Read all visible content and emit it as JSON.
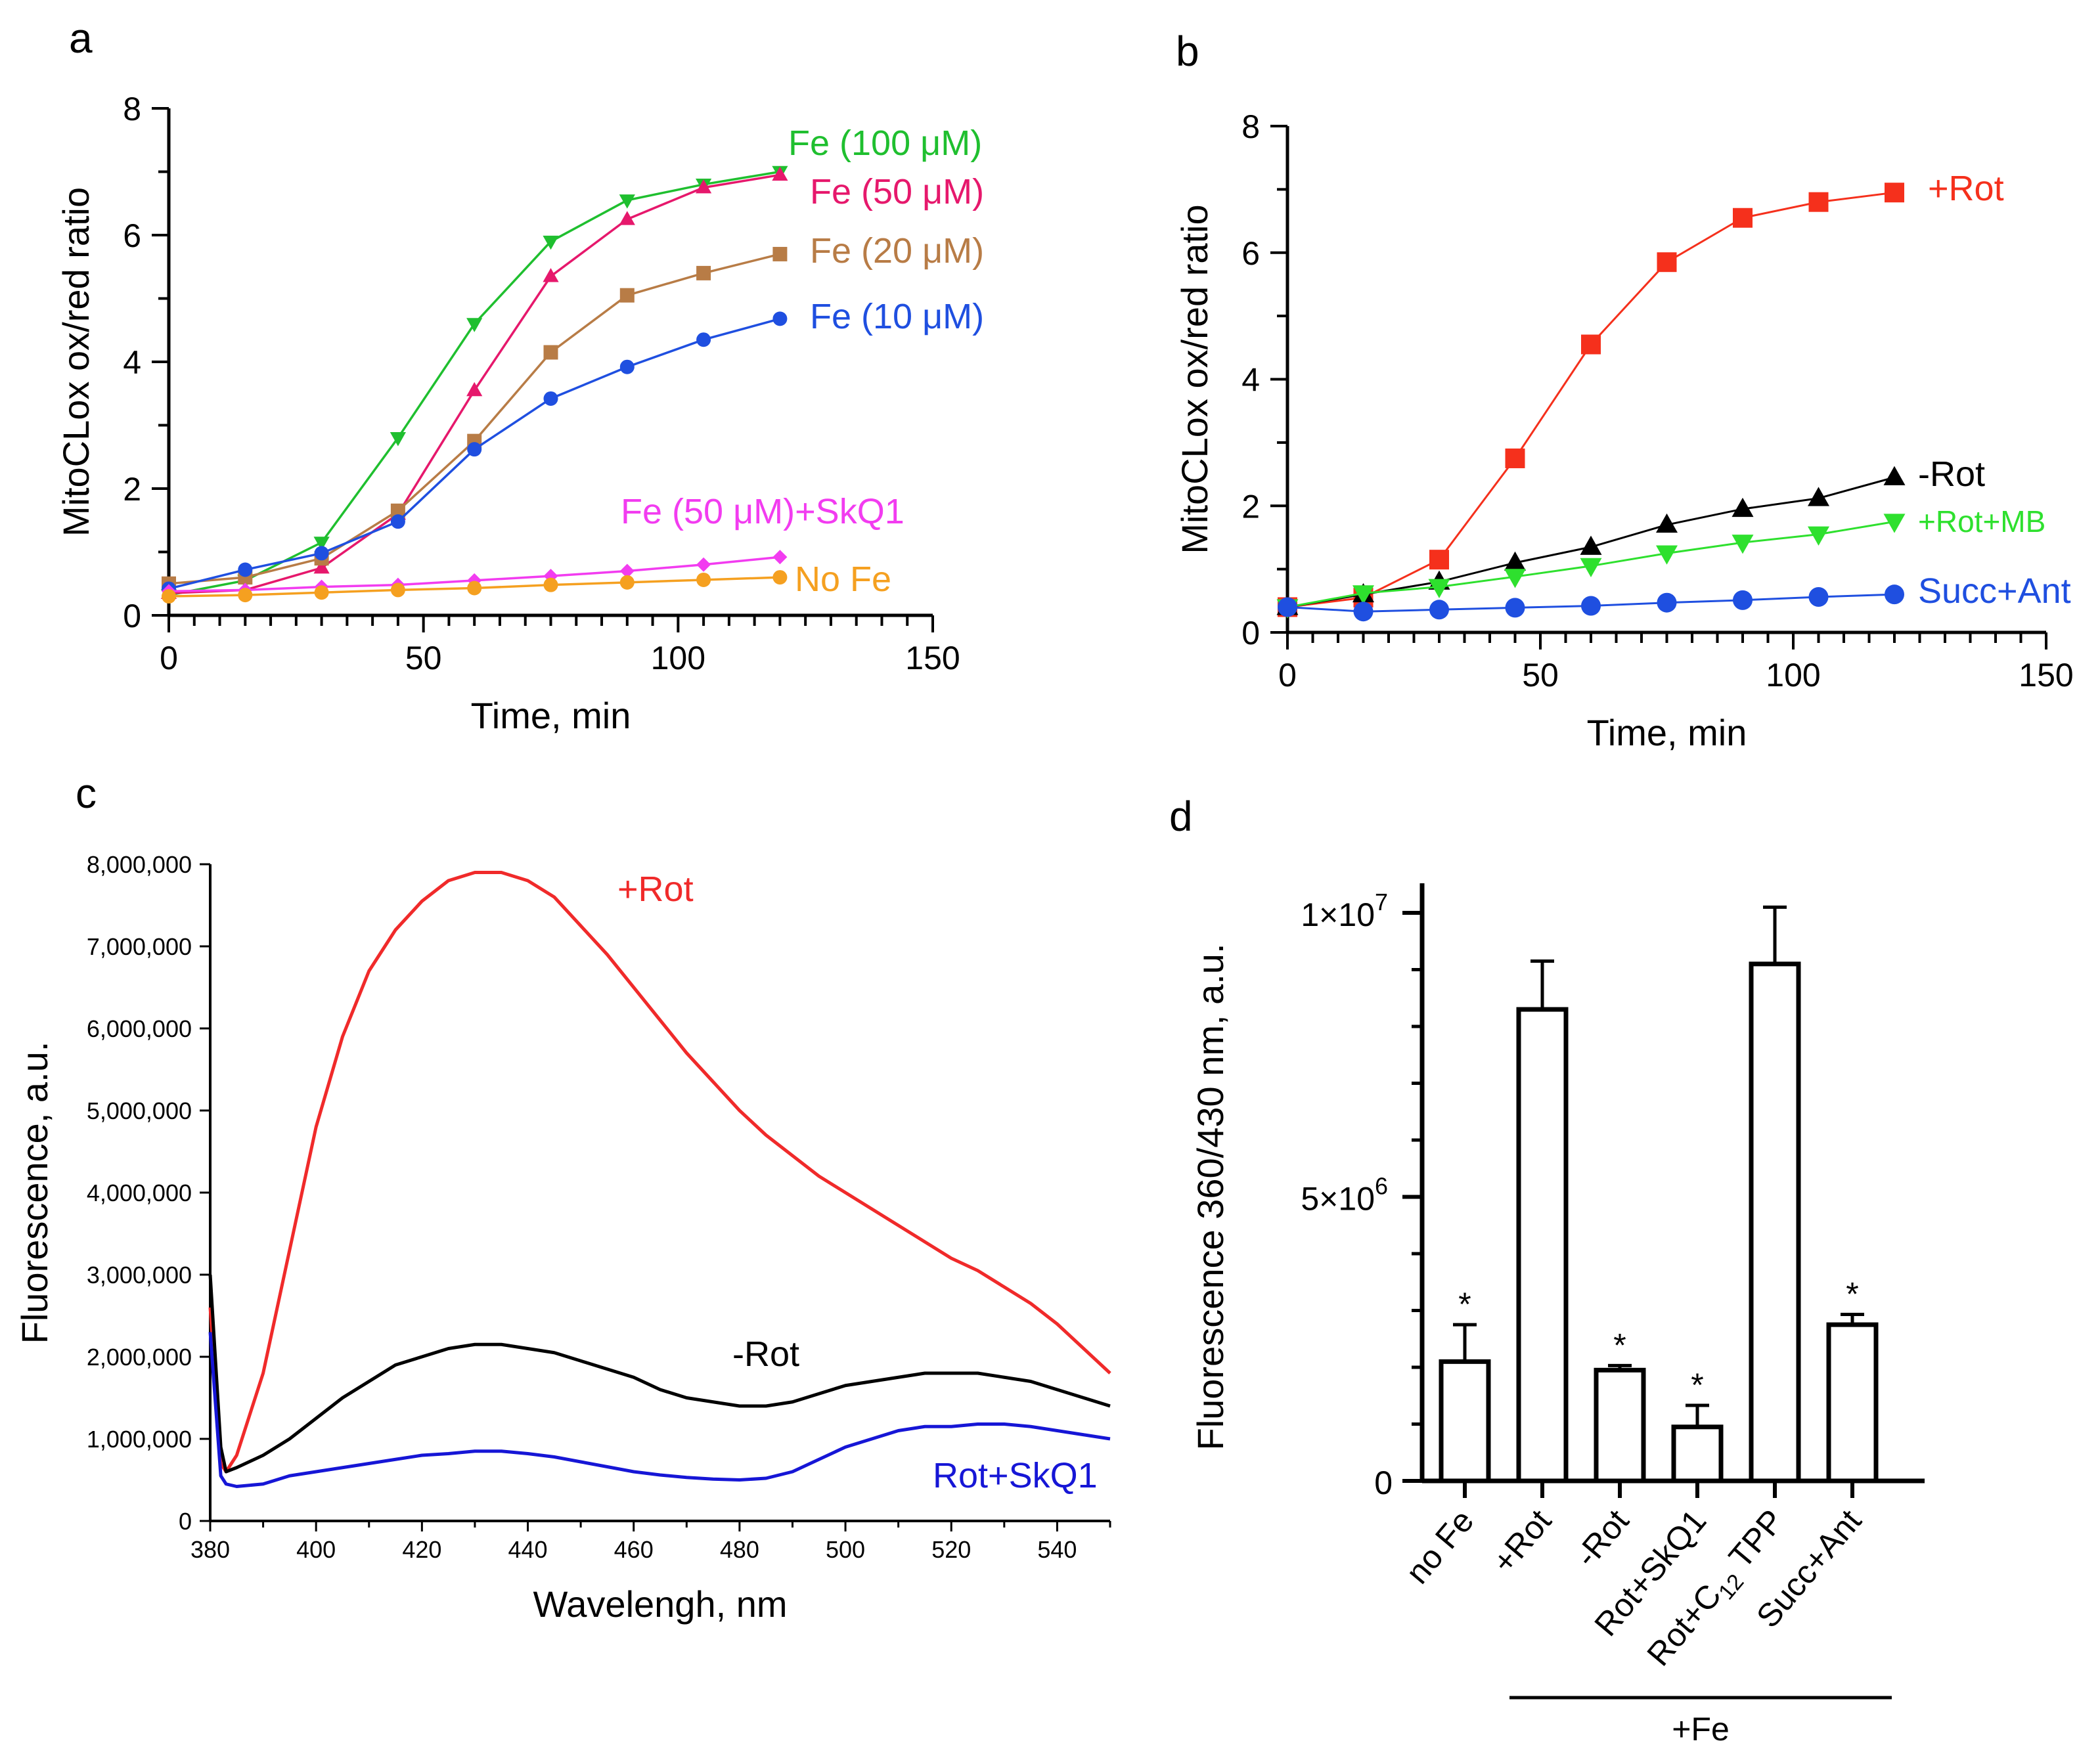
{
  "panels": {
    "a": {
      "letter": "a"
    },
    "b": {
      "letter": "b"
    },
    "c": {
      "letter": "c"
    },
    "d": {
      "letter": "d"
    }
  },
  "chart_data": [
    {
      "id": "a",
      "type": "line",
      "title": "",
      "xlabel": "Time, min",
      "ylabel": "MitoCLox ox/red ratio",
      "xlim": [
        0,
        150
      ],
      "ylim": [
        0,
        8
      ],
      "xticks": [
        0,
        50,
        100,
        150
      ],
      "yticks": [
        0,
        2,
        4,
        6,
        8
      ],
      "x": [
        0,
        15,
        30,
        45,
        60,
        75,
        90,
        105,
        120
      ],
      "series": [
        {
          "name": "Fe (100  μM)",
          "color": "#1fbf2f",
          "marker": "triangle-down",
          "values": [
            0.32,
            0.55,
            1.15,
            2.8,
            4.6,
            5.9,
            6.55,
            6.8,
            7.0
          ]
        },
        {
          "name": "Fe (50 μM)",
          "color": "#e6186c",
          "marker": "triangle-up",
          "values": [
            0.35,
            0.4,
            0.75,
            1.6,
            3.55,
            5.35,
            6.25,
            6.75,
            6.95
          ]
        },
        {
          "name": "Fe (20 μM)",
          "color": "#b87c46",
          "marker": "square",
          "values": [
            0.5,
            0.6,
            0.9,
            1.65,
            2.75,
            4.15,
            5.05,
            5.4,
            5.7
          ]
        },
        {
          "name": "Fe (10 μM)",
          "color": "#1f4fe0",
          "marker": "circle",
          "values": [
            0.42,
            0.72,
            0.98,
            1.48,
            2.62,
            3.42,
            3.92,
            4.35,
            4.68
          ]
        },
        {
          "name": "Fe (50 μM)+SkQ1",
          "color": "#f23cf0",
          "marker": "diamond",
          "values": [
            0.38,
            0.4,
            0.45,
            0.48,
            0.55,
            0.62,
            0.7,
            0.8,
            0.92
          ]
        },
        {
          "name": "No Fe",
          "color": "#f5a020",
          "marker": "circle",
          "values": [
            0.3,
            0.32,
            0.36,
            0.4,
            0.43,
            0.48,
            0.52,
            0.56,
            0.6
          ]
        }
      ]
    },
    {
      "id": "b",
      "type": "line",
      "title": "",
      "xlabel": "Time, min",
      "ylabel": "MitoCLox ox/red ratio",
      "xlim": [
        0,
        150
      ],
      "ylim": [
        0,
        8
      ],
      "xticks": [
        0,
        50,
        100,
        150
      ],
      "yticks": [
        0,
        2,
        4,
        6,
        8
      ],
      "x": [
        0,
        15,
        30,
        45,
        60,
        75,
        90,
        105,
        120
      ],
      "series": [
        {
          "name": "+Rot",
          "color": "#f5301c",
          "marker": "square",
          "values": [
            0.4,
            0.55,
            1.15,
            2.75,
            4.55,
            5.85,
            6.55,
            6.8,
            6.95
          ]
        },
        {
          "name": "-Rot",
          "color": "#000000",
          "marker": "triangle-up",
          "values": [
            0.4,
            0.6,
            0.8,
            1.1,
            1.35,
            1.7,
            1.95,
            2.12,
            2.45
          ]
        },
        {
          "name": "+Rot+MB",
          "color": "#2ee02e",
          "marker": "triangle-down",
          "values": [
            0.4,
            0.62,
            0.72,
            0.88,
            1.05,
            1.25,
            1.42,
            1.55,
            1.75
          ]
        },
        {
          "name": "Succ+Ant",
          "color": "#1f4fe0",
          "marker": "circle",
          "values": [
            0.4,
            0.33,
            0.36,
            0.39,
            0.42,
            0.47,
            0.51,
            0.56,
            0.6
          ]
        }
      ]
    },
    {
      "id": "c",
      "type": "line",
      "title": "",
      "xlabel": "Wavelengh, nm",
      "ylabel": "Fluorescence, a.u.",
      "xlim": [
        380,
        550
      ],
      "ylim": [
        0,
        8000000
      ],
      "xticks": [
        380,
        400,
        420,
        440,
        460,
        480,
        500,
        520,
        540
      ],
      "yticks": [
        0,
        1000000,
        2000000,
        3000000,
        4000000,
        5000000,
        6000000,
        7000000,
        8000000
      ],
      "ytick_labels": [
        "0",
        "1,000,000",
        "2,000,000",
        "3,000,000",
        "4,000,000",
        "5,000,000",
        "6,000,000",
        "7,000,000",
        "8,000,000"
      ],
      "series": [
        {
          "name": "+Rot",
          "color": "#f02a2a",
          "x": [
            380,
            382,
            383,
            385,
            390,
            395,
            400,
            405,
            410,
            415,
            420,
            425,
            430,
            435,
            440,
            445,
            450,
            455,
            460,
            465,
            470,
            475,
            480,
            485,
            490,
            495,
            500,
            505,
            510,
            515,
            520,
            525,
            530,
            535,
            540,
            545,
            550
          ],
          "values": [
            2600000,
            700000,
            600000,
            800000,
            1800000,
            3300000,
            4800000,
            5900000,
            6700000,
            7200000,
            7550000,
            7800000,
            7900000,
            7900000,
            7800000,
            7600000,
            7250000,
            6900000,
            6500000,
            6100000,
            5700000,
            5350000,
            5000000,
            4700000,
            4450000,
            4200000,
            4000000,
            3800000,
            3600000,
            3400000,
            3200000,
            3050000,
            2850000,
            2650000,
            2400000,
            2100000,
            1800000
          ]
        },
        {
          "name": "-Rot",
          "color": "#000000",
          "x": [
            380,
            382,
            383,
            385,
            390,
            395,
            400,
            405,
            410,
            415,
            420,
            425,
            430,
            435,
            440,
            445,
            450,
            455,
            460,
            465,
            470,
            475,
            480,
            485,
            490,
            495,
            500,
            505,
            510,
            515,
            520,
            525,
            530,
            535,
            540,
            545,
            550
          ],
          "values": [
            3000000,
            900000,
            600000,
            650000,
            800000,
            1000000,
            1250000,
            1500000,
            1700000,
            1900000,
            2000000,
            2100000,
            2150000,
            2150000,
            2100000,
            2050000,
            1950000,
            1850000,
            1750000,
            1600000,
            1500000,
            1450000,
            1400000,
            1400000,
            1450000,
            1550000,
            1650000,
            1700000,
            1750000,
            1800000,
            1800000,
            1800000,
            1750000,
            1700000,
            1600000,
            1500000,
            1400000
          ]
        },
        {
          "name": "Rot+SkQ1",
          "color": "#1616d6",
          "x": [
            380,
            382,
            383,
            385,
            390,
            395,
            400,
            405,
            410,
            415,
            420,
            425,
            430,
            435,
            440,
            445,
            450,
            455,
            460,
            465,
            470,
            475,
            480,
            485,
            490,
            495,
            500,
            505,
            510,
            515,
            520,
            525,
            530,
            535,
            540,
            545,
            550
          ],
          "values": [
            2300000,
            550000,
            450000,
            420000,
            450000,
            550000,
            600000,
            650000,
            700000,
            750000,
            800000,
            820000,
            850000,
            850000,
            820000,
            780000,
            720000,
            660000,
            600000,
            560000,
            530000,
            510000,
            500000,
            520000,
            600000,
            750000,
            900000,
            1000000,
            1100000,
            1150000,
            1150000,
            1180000,
            1180000,
            1150000,
            1100000,
            1050000,
            1000000
          ]
        }
      ]
    },
    {
      "id": "d",
      "type": "bar",
      "title": "",
      "xlabel": "",
      "ylabel": "Fluorescence 360/430 nm, a.u.",
      "ylim": [
        0,
        10500000
      ],
      "yticks": [
        0,
        5000000,
        10000000
      ],
      "ytick_labels": [
        "0",
        "5×10",
        "1×10"
      ],
      "ytick_exponents": [
        "",
        "6",
        "7"
      ],
      "categories": [
        "no Fe",
        "+Rot",
        "-Rot",
        "Rot+SkQ1",
        "Rot+C",
        "Succ+Ant"
      ],
      "category_suffix": {
        "4": {
          "sub": "12",
          "rest": " TPP"
        }
      },
      "values": [
        2100000,
        8300000,
        1950000,
        950000,
        9100000,
        2750000
      ],
      "errors": [
        650000,
        850000,
        80000,
        380000,
        1000000,
        180000
      ],
      "significant": [
        "*",
        "",
        "*",
        "*",
        "",
        "*"
      ],
      "group_label": "+Fe",
      "group_span": [
        1,
        5
      ]
    }
  ]
}
